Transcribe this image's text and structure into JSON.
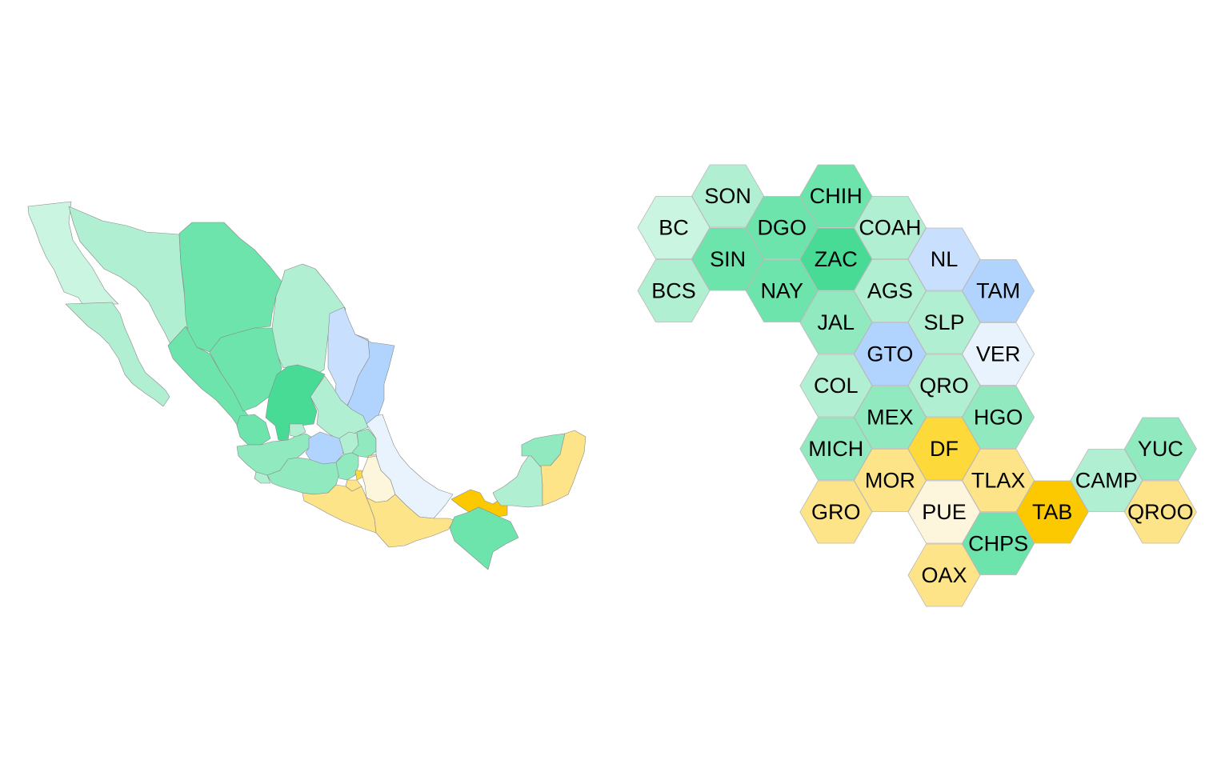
{
  "palette": {
    "g5": "#48db96",
    "g4": "#6ce4ab",
    "g3": "#90e9bf",
    "g2": "#b1efd2",
    "g1": "#c9f5e1",
    "b2": "#b0d4fd",
    "b1": "#c8e0fd",
    "b0": "#e9f3fe",
    "y3": "#fcc900",
    "y2": "#fdd93a",
    "y1": "#fde488",
    "y0": "#fef6dc"
  },
  "states": [
    {
      "code": "BC",
      "color": "g1"
    },
    {
      "code": "SON",
      "color": "g2"
    },
    {
      "code": "CHIH",
      "color": "g4"
    },
    {
      "code": "DGO",
      "color": "g4"
    },
    {
      "code": "COAH",
      "color": "g2"
    },
    {
      "code": "SIN",
      "color": "g4"
    },
    {
      "code": "ZAC",
      "color": "g5"
    },
    {
      "code": "NL",
      "color": "b1"
    },
    {
      "code": "BCS",
      "color": "g2"
    },
    {
      "code": "NAY",
      "color": "g4"
    },
    {
      "code": "AGS",
      "color": "g2"
    },
    {
      "code": "TAM",
      "color": "b2"
    },
    {
      "code": "JAL",
      "color": "g3"
    },
    {
      "code": "SLP",
      "color": "g2"
    },
    {
      "code": "GTO",
      "color": "b2"
    },
    {
      "code": "VER",
      "color": "b0"
    },
    {
      "code": "COL",
      "color": "g2"
    },
    {
      "code": "QRO",
      "color": "g2"
    },
    {
      "code": "MEX",
      "color": "g3"
    },
    {
      "code": "HGO",
      "color": "g3"
    },
    {
      "code": "MICH",
      "color": "g3"
    },
    {
      "code": "DF",
      "color": "y2"
    },
    {
      "code": "YUC",
      "color": "g3"
    },
    {
      "code": "MOR",
      "color": "y1"
    },
    {
      "code": "TLAX",
      "color": "y1"
    },
    {
      "code": "CAMP",
      "color": "g2"
    },
    {
      "code": "GRO",
      "color": "y1"
    },
    {
      "code": "PUE",
      "color": "y0"
    },
    {
      "code": "TAB",
      "color": "y3"
    },
    {
      "code": "QROO",
      "color": "y1"
    },
    {
      "code": "CHPS",
      "color": "g4"
    },
    {
      "code": "OAX",
      "color": "y1"
    }
  ]
}
